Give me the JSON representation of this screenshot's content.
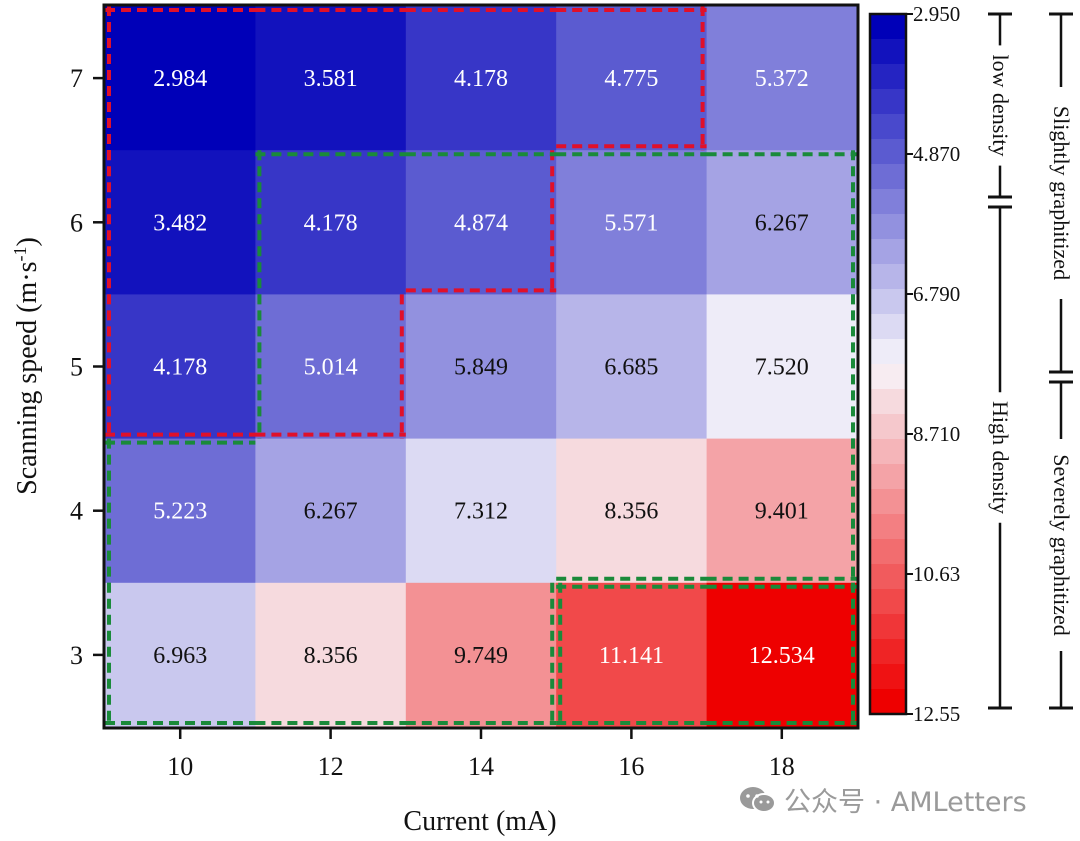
{
  "chart_data": {
    "type": "heatmap",
    "title": "",
    "xlabel": "Current (mA)",
    "ylabel_main": "Scanning speed (m·s",
    "ylabel_sup": "-1",
    "ylabel_close": ")",
    "x_categories": [
      "10",
      "12",
      "14",
      "16",
      "18"
    ],
    "y_categories": [
      "7",
      "6",
      "5",
      "4",
      "3"
    ],
    "values": [
      [
        2.984,
        3.581,
        4.178,
        4.775,
        5.372
      ],
      [
        3.482,
        4.178,
        4.874,
        5.571,
        6.267
      ],
      [
        4.178,
        5.014,
        5.849,
        6.685,
        7.52
      ],
      [
        5.223,
        6.267,
        7.312,
        8.356,
        9.401
      ],
      [
        6.963,
        8.356,
        9.749,
        11.141,
        12.534
      ]
    ],
    "value_labels": [
      [
        "2.984",
        "3.581",
        "4.178",
        "4.775",
        "5.372"
      ],
      [
        "3.482",
        "4.178",
        "4.874",
        "5.571",
        "6.267"
      ],
      [
        "4.178",
        "5.014",
        "5.849",
        "6.685",
        "7.520"
      ],
      [
        "5.223",
        "6.267",
        "7.312",
        "8.356",
        "9.401"
      ],
      [
        "6.963",
        "8.356",
        "9.749",
        "11.141",
        "12.534"
      ]
    ],
    "colorbar": {
      "min": 2.95,
      "max": 12.55,
      "levels": 28,
      "tick_values": [
        2.95,
        4.87,
        6.79,
        8.71,
        10.63,
        12.55
      ],
      "tick_labels": [
        "2.950",
        "4.870",
        "6.790",
        "8.710",
        "10.63",
        "12.55"
      ],
      "low_color": "#0000b8",
      "mid_color": "#f7f5fa",
      "high_color": "#ee0000"
    },
    "regions": [
      {
        "name": "low-density-region",
        "color": "#e0102a",
        "cells": [
          [
            0,
            0
          ],
          [
            0,
            1
          ],
          [
            0,
            2
          ],
          [
            0,
            3
          ],
          [
            1,
            0
          ],
          [
            1,
            1
          ],
          [
            1,
            2
          ],
          [
            2,
            0
          ],
          [
            2,
            1
          ]
        ]
      },
      {
        "name": "high-density-region-left",
        "color": "#1a8a3a",
        "cells": [
          [
            1,
            1
          ],
          [
            1,
            2
          ],
          [
            2,
            1
          ],
          [
            3,
            0
          ],
          [
            3,
            1
          ],
          [
            3,
            2
          ],
          [
            3,
            3
          ],
          [
            3,
            4
          ],
          [
            4,
            0
          ],
          [
            4,
            1
          ],
          [
            4,
            2
          ],
          [
            1,
            3
          ],
          [
            1,
            4
          ],
          [
            2,
            2
          ],
          [
            2,
            3
          ],
          [
            2,
            4
          ]
        ]
      },
      {
        "name": "high-density-region-right",
        "color": "#1a8a3a",
        "cells": [
          [
            4,
            3
          ],
          [
            4,
            4
          ]
        ]
      }
    ],
    "annotations": {
      "inner_brackets": [
        {
          "label": "low density",
          "from": 2.95,
          "to": 5.6
        },
        {
          "label": "High density",
          "from": 5.6,
          "to": 12.55
        }
      ],
      "outer_brackets": [
        {
          "label": "Slightly graphitized",
          "from": 2.95,
          "to": 7.6
        },
        {
          "label": "Severely graphitized",
          "from": 7.6,
          "to": 12.55
        }
      ]
    },
    "grid": false,
    "legend": "colorbar-right"
  },
  "watermark": {
    "text": "公众号 · AMLetters"
  }
}
